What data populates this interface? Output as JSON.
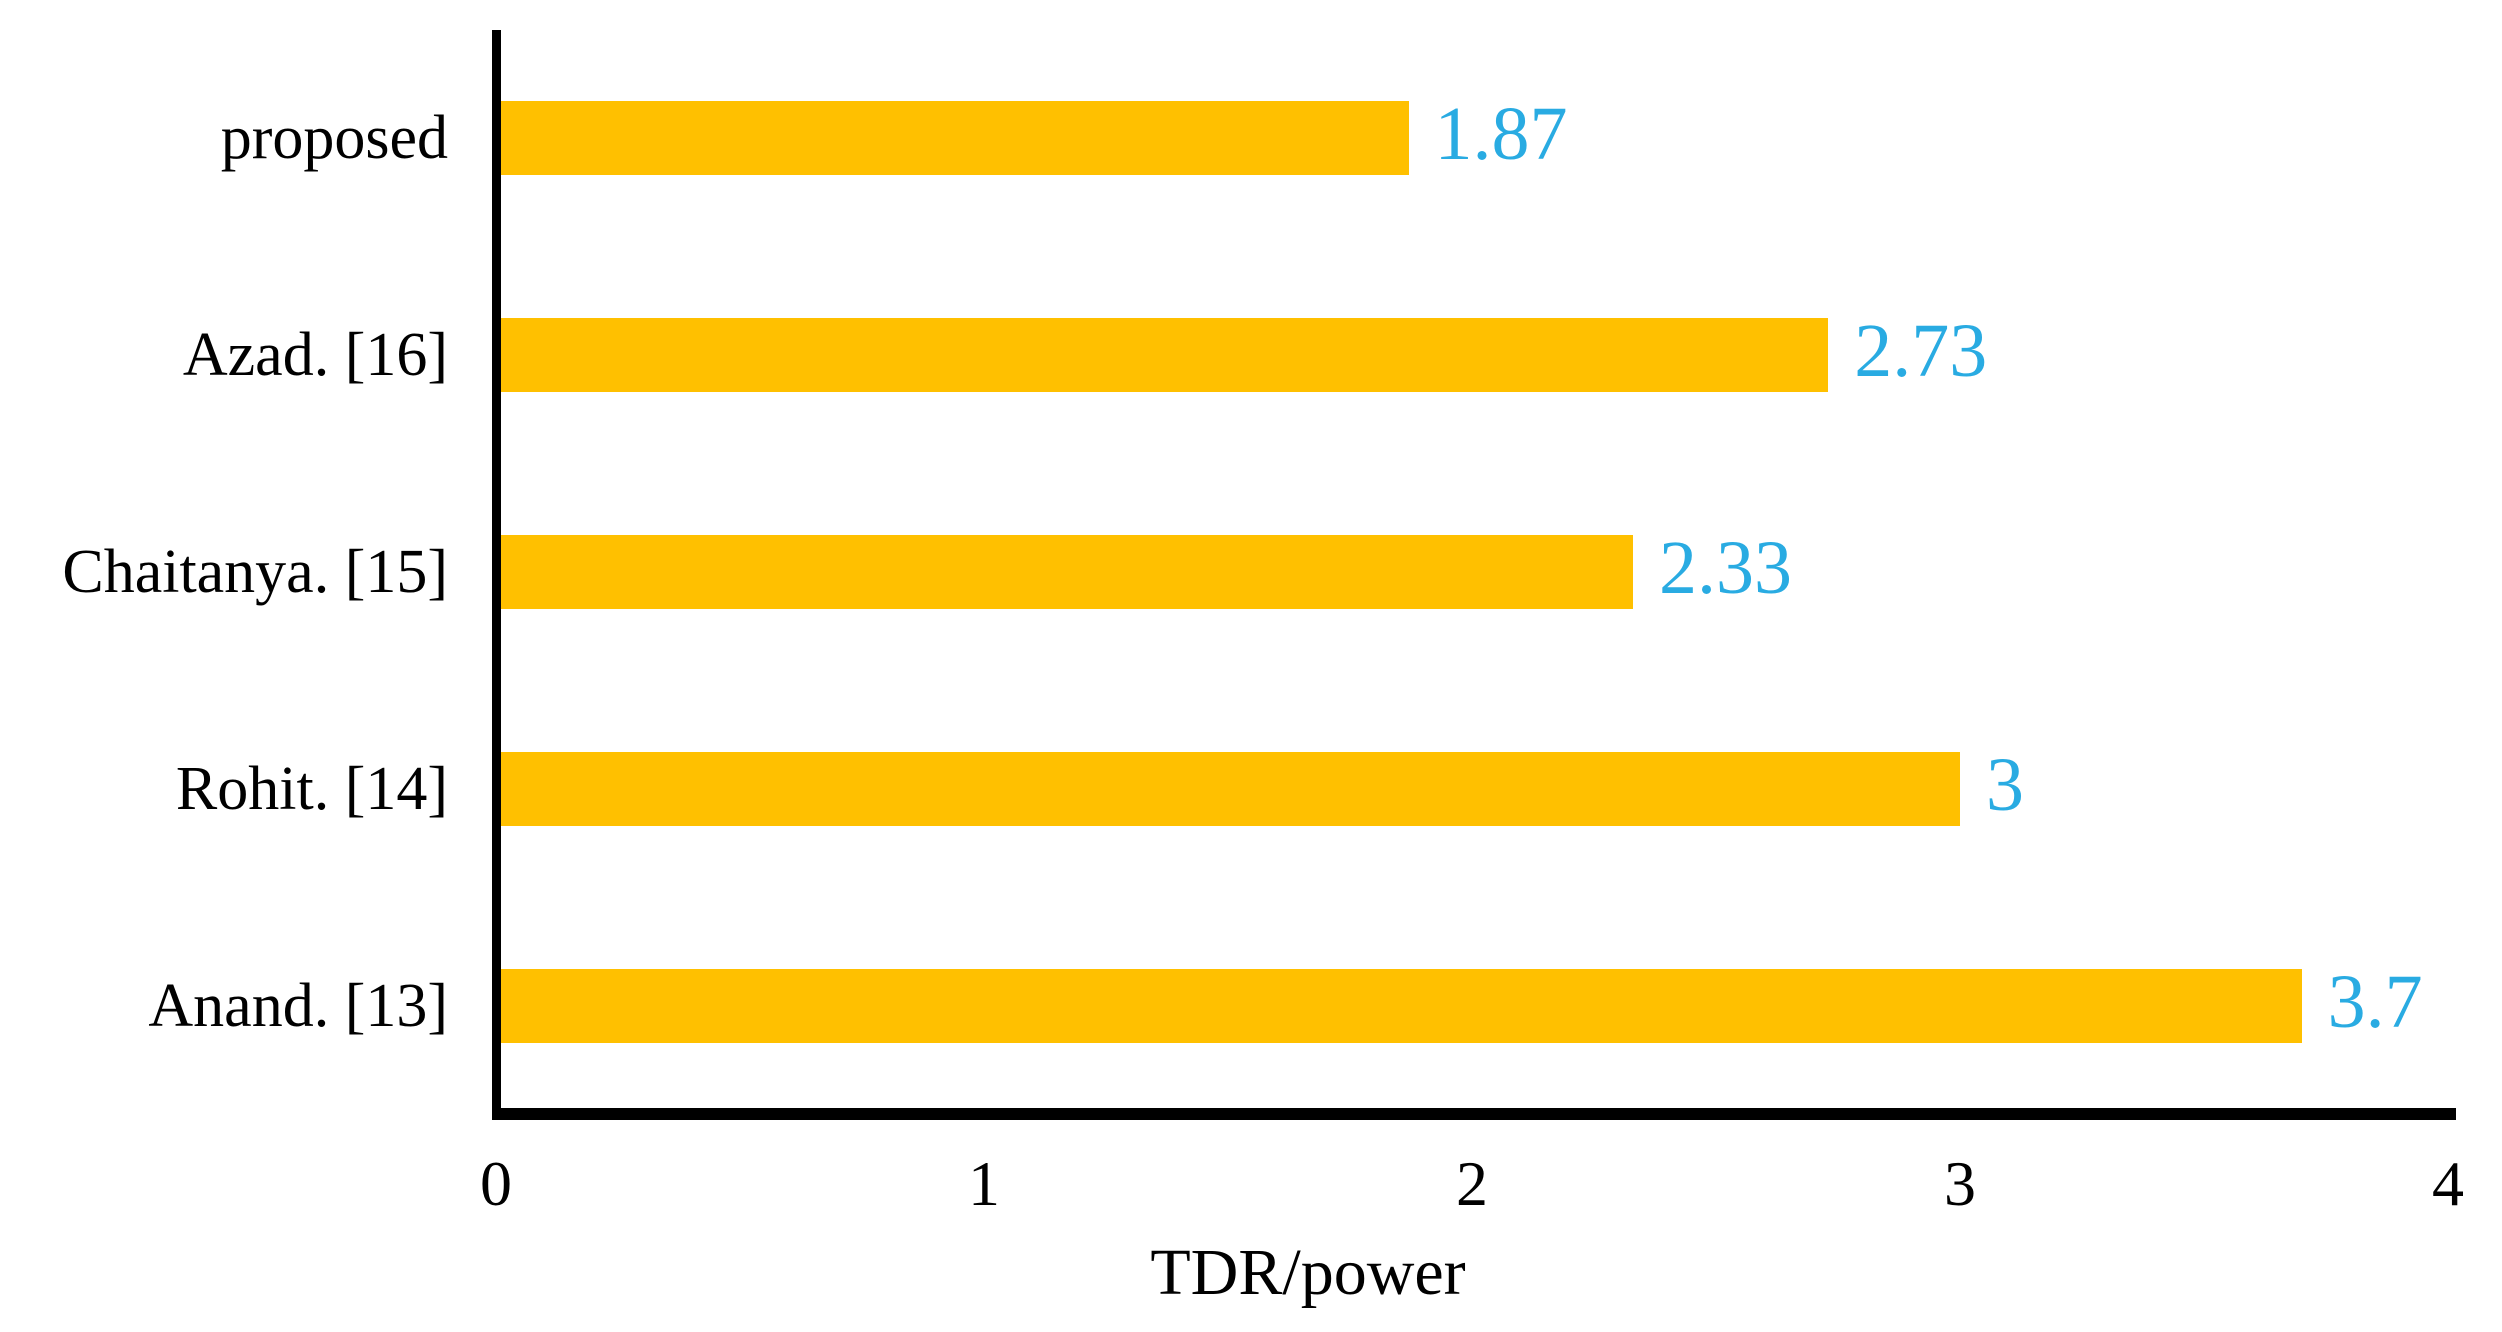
{
  "chart_data": {
    "type": "bar",
    "orientation": "horizontal",
    "title": "",
    "xlabel": "TDR/power",
    "ylabel": "",
    "categories": [
      "proposed",
      "Azad. [16]",
      "Chaitanya. [15]",
      "Rohit. [14]",
      "Anand. [13]"
    ],
    "values": [
      1.87,
      2.73,
      2.33,
      3,
      3.7
    ],
    "value_labels": [
      "1.87",
      "2.73",
      "2.33",
      "3",
      "3.7"
    ],
    "xlim": [
      0,
      4
    ],
    "x_ticks": [
      "0",
      "1",
      "2",
      "3",
      "4"
    ],
    "grid": false,
    "legend_position": "none",
    "bar_color": "#FFC000",
    "value_label_color": "#29ABE2",
    "axis_color": "#000000",
    "category_label_color": "#000000",
    "background_color": "#FFFFFF"
  }
}
